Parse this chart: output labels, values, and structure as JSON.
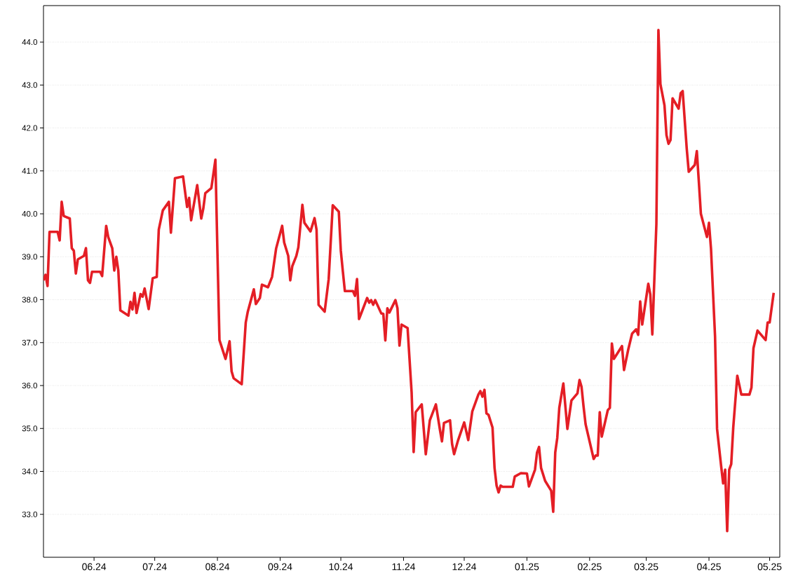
{
  "chart_data": {
    "type": "line",
    "xlim": [
      "2024-05-07",
      "2025-05-06"
    ],
    "ylim": [
      32.0,
      44.85
    ],
    "xticks": [
      {
        "value": "2024-06-01",
        "label": "06.24"
      },
      {
        "value": "2024-07-01",
        "label": "07.24"
      },
      {
        "value": "2024-08-01",
        "label": "08.24"
      },
      {
        "value": "2024-09-01",
        "label": "09.24"
      },
      {
        "value": "2024-10-01",
        "label": "10.24"
      },
      {
        "value": "2024-11-01",
        "label": "11.24"
      },
      {
        "value": "2024-12-01",
        "label": "12.24"
      },
      {
        "value": "2025-01-01",
        "label": "01.25"
      },
      {
        "value": "2025-02-01",
        "label": "02.25"
      },
      {
        "value": "2025-03-01",
        "label": "03.25"
      },
      {
        "value": "2025-04-01",
        "label": "04.25"
      },
      {
        "value": "2025-05-01",
        "label": "05.25"
      }
    ],
    "yticks": [
      {
        "value": 33,
        "label": "33.0"
      },
      {
        "value": 34,
        "label": "34.0"
      },
      {
        "value": 35,
        "label": "35.0"
      },
      {
        "value": 36,
        "label": "36.0"
      },
      {
        "value": 37,
        "label": "37.0"
      },
      {
        "value": 38,
        "label": "38.0"
      },
      {
        "value": 39,
        "label": "39.0"
      },
      {
        "value": 40,
        "label": "40.0"
      },
      {
        "value": 41,
        "label": "41.0"
      },
      {
        "value": 42,
        "label": "42.0"
      },
      {
        "value": 43,
        "label": "43.0"
      },
      {
        "value": 44,
        "label": "44.0"
      }
    ],
    "grid": "y",
    "line_style": "solid",
    "x": [
      "2024-05-07",
      "2024-05-08",
      "2024-05-09",
      "2024-05-10",
      "2024-05-14",
      "2024-05-15",
      "2024-05-16",
      "2024-05-17",
      "2024-05-20",
      "2024-05-21",
      "2024-05-22",
      "2024-05-23",
      "2024-05-24",
      "2024-05-27",
      "2024-05-28",
      "2024-05-29",
      "2024-05-30",
      "2024-05-31",
      "2024-06-04",
      "2024-06-05",
      "2024-06-07",
      "2024-06-08",
      "2024-06-10",
      "2024-06-11",
      "2024-06-12",
      "2024-06-13",
      "2024-06-14",
      "2024-06-18",
      "2024-06-19",
      "2024-06-20",
      "2024-06-21",
      "2024-06-22",
      "2024-06-24",
      "2024-06-25",
      "2024-06-26",
      "2024-06-28",
      "2024-06-30",
      "2024-07-02",
      "2024-07-03",
      "2024-07-05",
      "2024-07-08",
      "2024-07-09",
      "2024-07-11",
      "2024-07-15",
      "2024-07-17",
      "2024-07-18",
      "2024-07-19",
      "2024-07-22",
      "2024-07-24",
      "2024-07-25",
      "2024-07-26",
      "2024-07-29",
      "2024-07-30",
      "2024-07-31",
      "2024-08-01",
      "2024-08-02",
      "2024-08-05",
      "2024-08-07",
      "2024-08-08",
      "2024-08-09",
      "2024-08-13",
      "2024-08-15",
      "2024-08-16",
      "2024-08-19",
      "2024-08-20",
      "2024-08-22",
      "2024-08-23",
      "2024-08-26",
      "2024-08-28",
      "2024-08-30",
      "2024-09-02",
      "2024-09-03",
      "2024-09-05",
      "2024-09-06",
      "2024-09-07",
      "2024-09-09",
      "2024-09-10",
      "2024-09-12",
      "2024-09-13",
      "2024-09-16",
      "2024-09-18",
      "2024-09-19",
      "2024-09-20",
      "2024-09-23",
      "2024-09-25",
      "2024-09-27",
      "2024-09-30",
      "2024-10-01",
      "2024-10-02",
      "2024-10-03",
      "2024-10-07",
      "2024-10-08",
      "2024-10-09",
      "2024-10-10",
      "2024-10-11",
      "2024-10-14",
      "2024-10-15",
      "2024-10-16",
      "2024-10-17",
      "2024-10-18",
      "2024-10-21",
      "2024-10-22",
      "2024-10-23",
      "2024-10-24",
      "2024-10-25",
      "2024-10-28",
      "2024-10-29",
      "2024-10-30",
      "2024-10-31",
      "2024-11-03",
      "2024-11-05",
      "2024-11-06",
      "2024-11-07",
      "2024-11-10",
      "2024-11-12",
      "2024-11-14",
      "2024-11-17",
      "2024-11-19",
      "2024-11-20",
      "2024-11-21",
      "2024-11-24",
      "2024-11-25",
      "2024-11-26",
      "2024-11-28",
      "2024-12-01",
      "2024-12-03",
      "2024-12-05",
      "2024-12-08",
      "2024-12-09",
      "2024-12-10",
      "2024-12-11",
      "2024-12-12",
      "2024-12-13",
      "2024-12-15",
      "2024-12-16",
      "2024-12-17",
      "2024-12-18",
      "2024-12-19",
      "2024-12-20",
      "2024-12-25",
      "2024-12-26",
      "2024-12-29",
      "2025-01-01",
      "2025-01-02",
      "2025-01-05",
      "2025-01-06",
      "2025-01-07",
      "2025-01-08",
      "2025-01-10",
      "2025-01-13",
      "2025-01-14",
      "2025-01-15",
      "2025-01-16",
      "2025-01-17",
      "2025-01-19",
      "2025-01-21",
      "2025-01-23",
      "2025-01-26",
      "2025-01-27",
      "2025-01-28",
      "2025-01-29",
      "2025-01-30",
      "2025-02-03",
      "2025-02-04",
      "2025-02-05",
      "2025-02-06",
      "2025-02-07",
      "2025-02-10",
      "2025-02-11",
      "2025-02-12",
      "2025-02-13",
      "2025-02-17",
      "2025-02-18",
      "2025-02-20",
      "2025-02-22",
      "2025-02-24",
      "2025-02-25",
      "2025-02-26",
      "2025-02-27",
      "2025-03-02",
      "2025-03-03",
      "2025-03-04",
      "2025-03-06",
      "2025-03-07",
      "2025-03-08",
      "2025-03-10",
      "2025-03-11",
      "2025-03-12",
      "2025-03-13",
      "2025-03-14",
      "2025-03-17",
      "2025-03-18",
      "2025-03-19",
      "2025-03-21",
      "2025-03-22",
      "2025-03-25",
      "2025-03-26",
      "2025-03-27",
      "2025-03-28",
      "2025-03-31",
      "2025-04-01",
      "2025-04-02",
      "2025-04-04",
      "2025-04-05",
      "2025-04-07",
      "2025-04-08",
      "2025-04-09",
      "2025-04-10",
      "2025-04-11",
      "2025-04-12",
      "2025-04-13",
      "2025-04-15",
      "2025-04-17",
      "2025-04-21",
      "2025-04-22",
      "2025-04-23",
      "2025-04-25",
      "2025-04-29",
      "2025-04-30",
      "2025-05-01",
      "2025-05-03"
    ],
    "series": [
      {
        "color": "#e41e25",
        "values": [
          38.45,
          38.58,
          38.32,
          39.58,
          39.58,
          39.38,
          40.28,
          39.95,
          39.89,
          39.2,
          39.14,
          38.61,
          38.94,
          39.02,
          39.2,
          38.45,
          38.39,
          38.65,
          38.65,
          38.55,
          39.72,
          39.46,
          39.2,
          38.68,
          39.0,
          38.68,
          37.75,
          37.63,
          37.95,
          37.77,
          38.16,
          37.69,
          38.13,
          38.07,
          38.26,
          37.78,
          38.5,
          38.53,
          39.63,
          40.08,
          40.28,
          39.56,
          40.83,
          40.87,
          40.16,
          40.37,
          39.85,
          40.67,
          39.89,
          40.12,
          40.48,
          40.6,
          40.93,
          41.26,
          39.1,
          37.06,
          36.62,
          37.03,
          36.33,
          36.17,
          36.03,
          37.47,
          37.72,
          38.24,
          37.9,
          38.04,
          38.35,
          38.29,
          38.53,
          39.19,
          39.72,
          39.33,
          39.02,
          38.45,
          38.78,
          39.02,
          39.22,
          40.21,
          39.79,
          39.59,
          39.9,
          39.63,
          37.88,
          37.72,
          38.48,
          40.2,
          40.05,
          39.14,
          38.66,
          38.2,
          38.2,
          38.09,
          38.48,
          37.55,
          37.67,
          38.04,
          37.93,
          37.99,
          37.88,
          37.99,
          37.68,
          37.67,
          37.05,
          37.8,
          37.7,
          37.99,
          37.8,
          36.93,
          37.42,
          37.34,
          35.84,
          34.45,
          35.38,
          35.56,
          34.4,
          35.19,
          35.56,
          34.97,
          34.7,
          35.13,
          35.19,
          34.64,
          34.4,
          34.73,
          35.14,
          34.73,
          35.4,
          35.79,
          35.87,
          35.74,
          35.9,
          35.35,
          35.32,
          35.02,
          34.08,
          33.67,
          33.51,
          33.67,
          33.64,
          33.64,
          33.88,
          33.96,
          33.95,
          33.65,
          34.04,
          34.44,
          34.57,
          34.08,
          33.78,
          33.55,
          33.06,
          34.44,
          34.78,
          35.48,
          36.05,
          34.99,
          35.65,
          35.82,
          36.13,
          35.97,
          35.51,
          35.1,
          34.29,
          34.37,
          34.37,
          35.38,
          34.81,
          35.43,
          35.48,
          36.98,
          36.62,
          36.92,
          36.36,
          36.82,
          37.21,
          37.31,
          37.18,
          37.96,
          37.42,
          38.37,
          38.12,
          37.19,
          39.76,
          44.28,
          43.02,
          42.53,
          41.83,
          41.63,
          41.72,
          42.69,
          42.45,
          42.81,
          42.86,
          41.52,
          40.98,
          41.14,
          41.46,
          40.74,
          40.0,
          39.46,
          39.79,
          39.19,
          37.15,
          34.99,
          34.13,
          33.72,
          34.04,
          32.61,
          34.04,
          34.17,
          35.02,
          36.23,
          35.79,
          35.79,
          35.95,
          36.87,
          37.28,
          37.06,
          37.47,
          37.47,
          38.16
        ]
      }
    ]
  }
}
